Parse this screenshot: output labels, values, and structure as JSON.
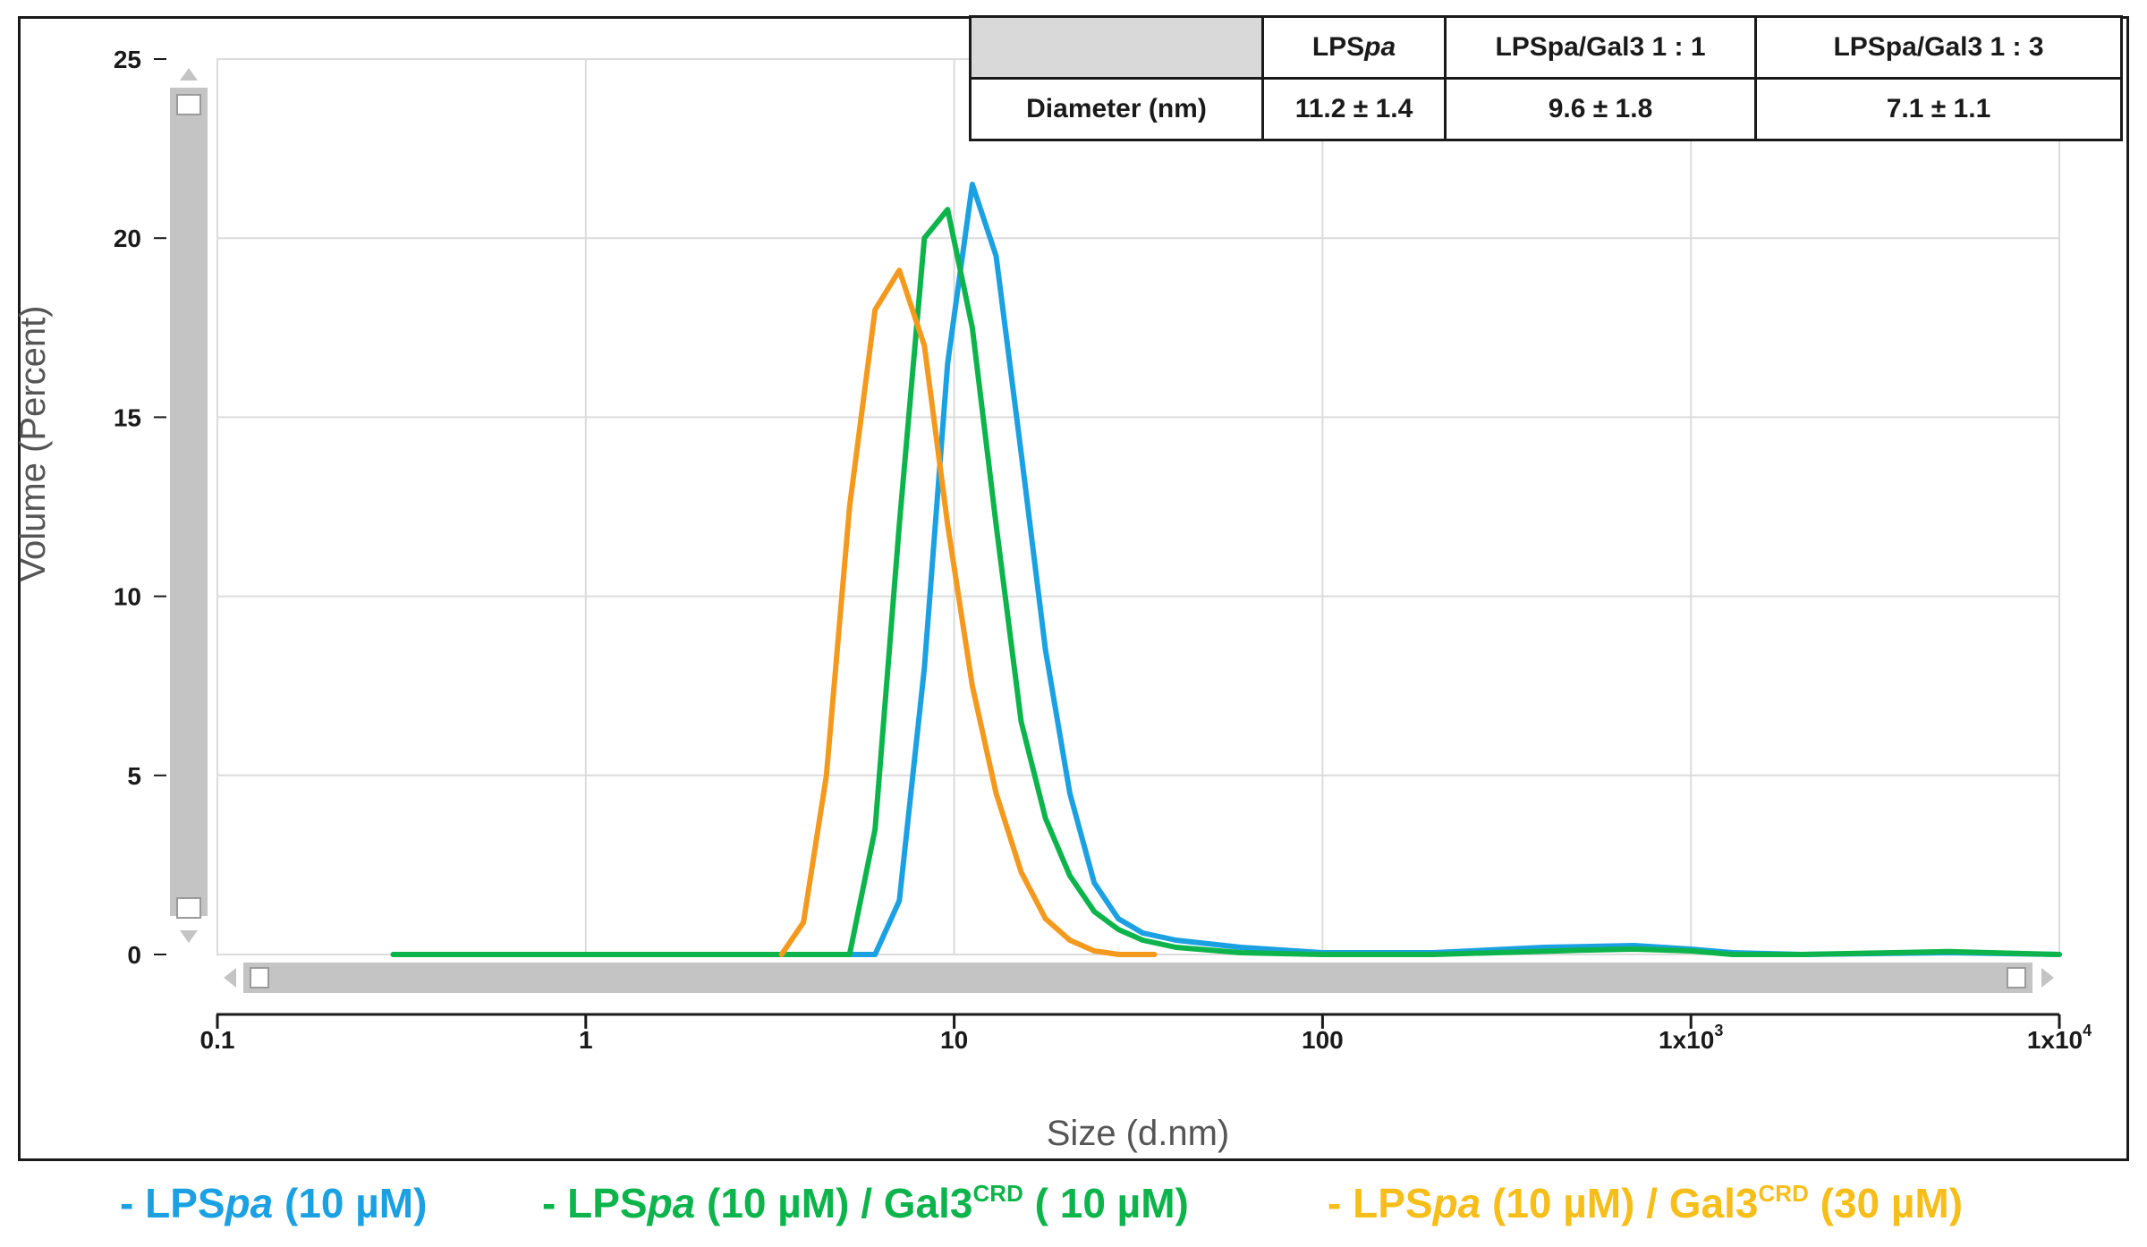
{
  "colors": {
    "blue": "#1ba1e2",
    "green": "#0db44c",
    "orange": "#f39a1e",
    "yellow": "#f6be1a",
    "grid": "#dcdcdc",
    "scroll": "#c4c4c4"
  },
  "table": {
    "headers": [
      "",
      "LPSpa",
      "LPSpa/Gal3 1 : 1",
      "LPSpa/Gal3 1 : 3"
    ],
    "row_label": "Diameter (nm)",
    "values": [
      "11.2 ± 1.4",
      "9.6 ± 1.8",
      "7.1 ± 1.1"
    ]
  },
  "legend": [
    {
      "prefix": "- LPS",
      "italic": "pa",
      "after": " (10 µM)",
      "sup_base": "",
      "sup": "",
      "tail": "",
      "color_key": "blue"
    },
    {
      "prefix": "- LPS",
      "italic": "pa",
      "after": " (10 µM) / ",
      "sup_base": "Gal3",
      "sup": "CRD",
      "tail": " ( 10 µM)",
      "color_key": "green"
    },
    {
      "prefix": "- LPS",
      "italic": "pa",
      "after": " (10 µM) / ",
      "sup_base": "Gal3",
      "sup": "CRD",
      "tail": " (30 µM)",
      "color_key": "yellow"
    }
  ],
  "chart_data": {
    "type": "line",
    "xlabel": "Size (d.nm)",
    "ylabel": "Volume (Percent)",
    "xscale": "log",
    "xlim": [
      0.1,
      10000
    ],
    "ylim": [
      0,
      25
    ],
    "x_ticks": [
      0.1,
      1,
      10,
      100,
      1000,
      10000
    ],
    "x_tick_labels": [
      {
        "base": "0.1",
        "exp": ""
      },
      {
        "base": "1",
        "exp": ""
      },
      {
        "base": "10",
        "exp": ""
      },
      {
        "base": "100",
        "exp": ""
      },
      {
        "base": "1x10",
        "exp": "3"
      },
      {
        "base": "1x10",
        "exp": "4"
      }
    ],
    "y_ticks": [
      0,
      5,
      10,
      15,
      20,
      25
    ],
    "y_tick_labels": [
      "0",
      "5",
      "10",
      "15",
      "20",
      "25"
    ],
    "grid": true,
    "series": [
      {
        "name": "LPSpa (10 µM)",
        "color_key": "blue",
        "x": [
          0.3,
          6.1,
          7.1,
          8.3,
          9.6,
          11.2,
          13.0,
          15.2,
          17.7,
          20.6,
          24.0,
          27.9,
          32.5,
          40,
          60,
          100,
          200,
          400,
          700,
          1000,
          1300,
          2000,
          5000,
          10000
        ],
        "y": [
          0,
          0,
          1.5,
          8.0,
          16.5,
          21.5,
          19.5,
          14.0,
          8.5,
          4.5,
          2.0,
          1.0,
          0.6,
          0.4,
          0.2,
          0.05,
          0.05,
          0.2,
          0.25,
          0.15,
          0.05,
          0,
          0.05,
          0
        ]
      },
      {
        "name": "LPSpa (10 µM) / Gal3CRD ( 10 µM)",
        "color_key": "green",
        "x": [
          0.3,
          5.2,
          6.1,
          7.1,
          8.3,
          9.6,
          11.2,
          13.0,
          15.2,
          17.7,
          20.6,
          24.0,
          27.9,
          32.5,
          40,
          60,
          100,
          200,
          500,
          700,
          1000,
          1300,
          2000,
          5000,
          10000
        ],
        "y": [
          0,
          0,
          3.5,
          12.0,
          20.0,
          20.8,
          17.5,
          12.0,
          6.5,
          3.8,
          2.2,
          1.2,
          0.7,
          0.4,
          0.2,
          0.05,
          0,
          0,
          0.12,
          0.15,
          0.1,
          0,
          0,
          0.08,
          0
        ]
      },
      {
        "name": "LPSpa (10 µM) / Gal3CRD (30 µM)",
        "color_key": "orange",
        "x": [
          3.4,
          3.9,
          4.5,
          5.2,
          6.1,
          7.1,
          8.3,
          9.6,
          11.2,
          13.0,
          15.2,
          17.7,
          20.6,
          24.0,
          28.0,
          35
        ],
        "y": [
          0,
          0.9,
          5.0,
          12.5,
          18.0,
          19.1,
          17.0,
          12.0,
          7.5,
          4.5,
          2.3,
          1.0,
          0.4,
          0.1,
          0,
          0
        ]
      }
    ]
  }
}
